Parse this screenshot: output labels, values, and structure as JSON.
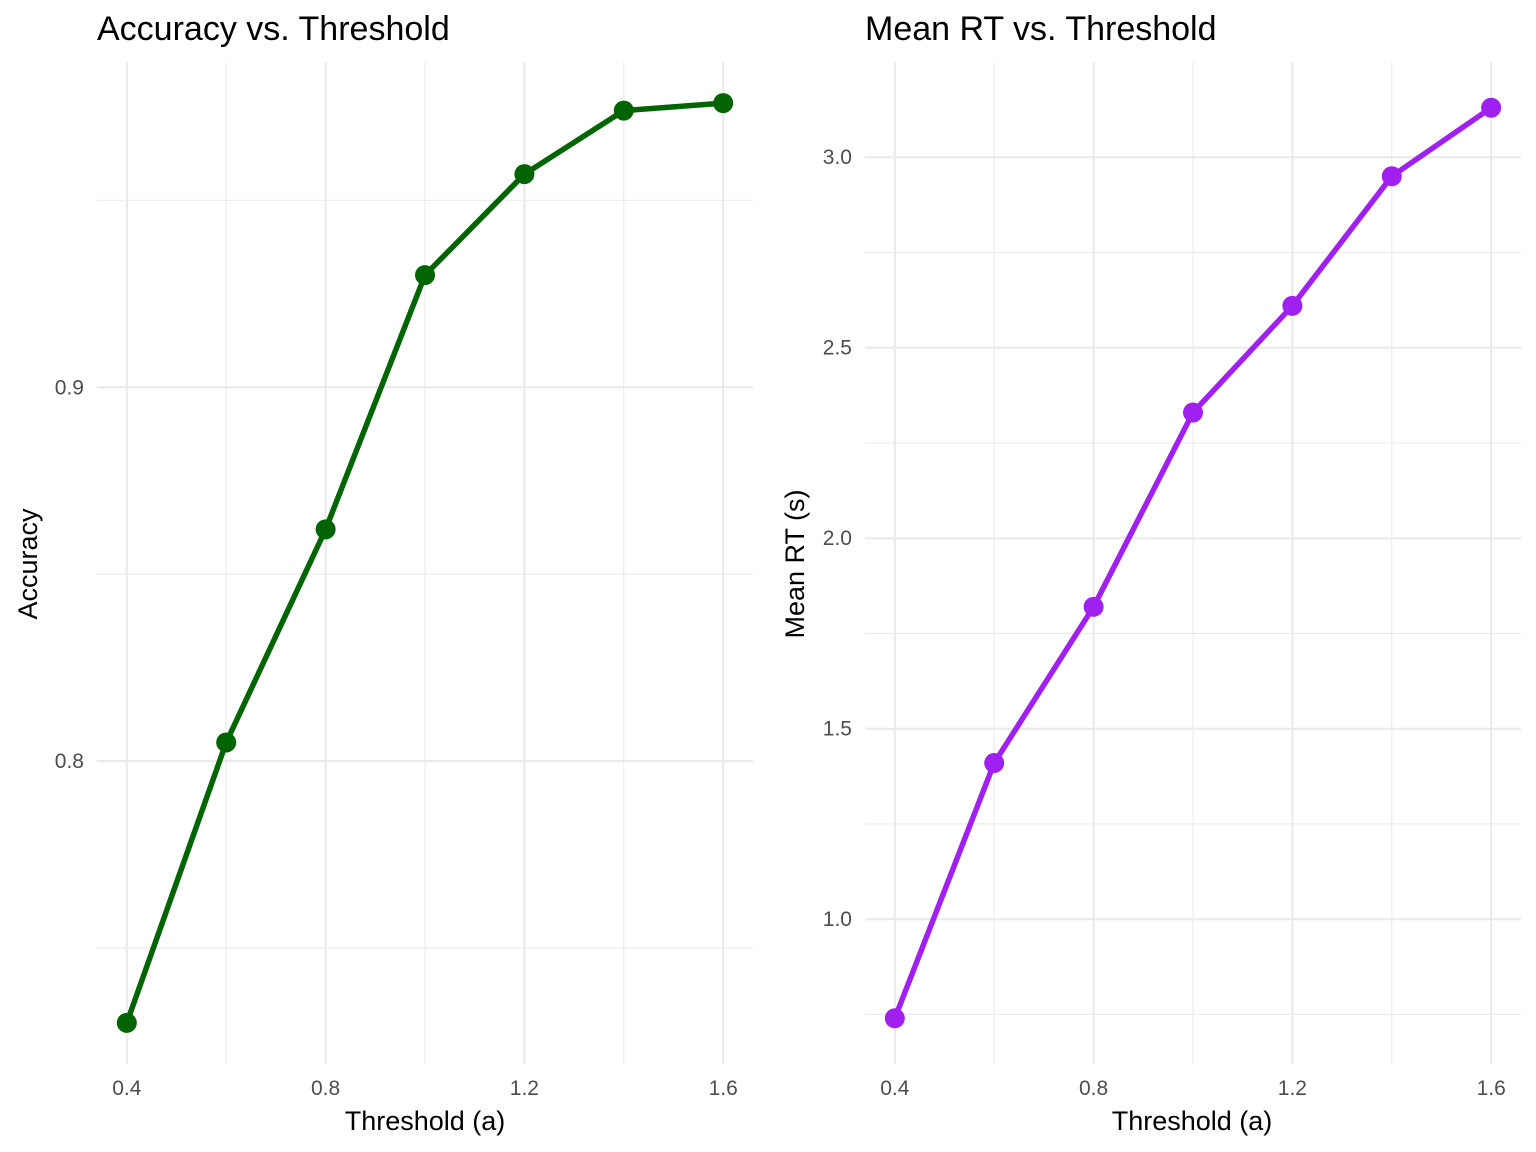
{
  "chart_data": [
    {
      "type": "line",
      "title": "Accuracy vs. Threshold",
      "xlabel": "Threshold (a)",
      "ylabel": "Accuracy",
      "color": "#006400",
      "x": [
        0.4,
        0.6,
        0.8,
        1.0,
        1.2,
        1.4,
        1.6
      ],
      "values": [
        0.73,
        0.805,
        0.862,
        0.93,
        0.957,
        0.974,
        0.976
      ],
      "xlim": [
        0.34,
        1.66
      ],
      "ylim": [
        0.719,
        0.987
      ],
      "xticks": [
        0.4,
        0.8,
        1.2,
        1.6
      ],
      "xtick_labels": [
        "0.4",
        "0.8",
        "1.2",
        "1.6"
      ],
      "xminor": [
        0.6,
        1.0,
        1.4
      ],
      "yticks": [
        0.8,
        0.9
      ],
      "ytick_labels": [
        "0.8",
        "0.9"
      ],
      "yminor": [
        0.75,
        0.85,
        0.95
      ],
      "grid": true
    },
    {
      "type": "line",
      "title": "Mean RT vs. Threshold",
      "xlabel": "Threshold (a)",
      "ylabel": "Mean RT (s)",
      "color": "#A020F0",
      "x": [
        0.4,
        0.6,
        0.8,
        1.0,
        1.2,
        1.4,
        1.6
      ],
      "values": [
        0.74,
        1.41,
        1.82,
        2.33,
        2.61,
        2.95,
        3.13
      ],
      "xlim": [
        0.34,
        1.66
      ],
      "ylim": [
        0.62,
        3.25
      ],
      "xticks": [
        0.4,
        0.8,
        1.2,
        1.6
      ],
      "xtick_labels": [
        "0.4",
        "0.8",
        "1.2",
        "1.6"
      ],
      "xminor": [
        0.6,
        1.0,
        1.4
      ],
      "yticks": [
        1.0,
        1.5,
        2.0,
        2.5,
        3.0
      ],
      "ytick_labels": [
        "1.0",
        "1.5",
        "2.0",
        "2.5",
        "3.0"
      ],
      "yminor": [
        0.75,
        1.25,
        1.75,
        2.25,
        2.75
      ],
      "grid": true
    }
  ]
}
